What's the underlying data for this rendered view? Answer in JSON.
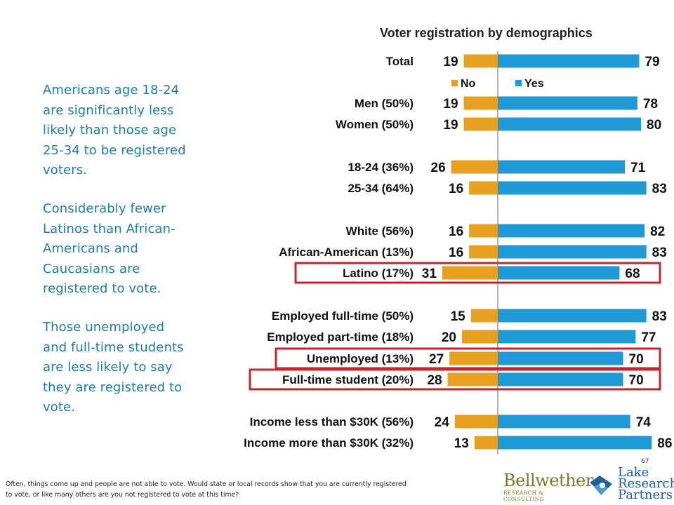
{
  "left_text": {
    "paragraph_1": "Americans age 18-24 are significantly less likely than those age 25-34 to be registered voters.",
    "paragraph_2": "Considerably fewer Latinos than African-Americans and Caucasians are registered to vote.",
    "paragraph_3": "Those unemployed and full-time students are less likely to say they are registered to vote."
  },
  "footnote": "Often, things come up and people are not able to vote. Would state or local records show that you are currently registered to vote, or  like many others are you not registered to vote at this time?",
  "page_number": "67",
  "logos": {
    "bellwether_main": "Bellwether",
    "bellwether_sub": "RESEARCH & CONSULTING",
    "lake_line1": "Lake",
    "lake_line2": "Research",
    "lake_line3": "Partners"
  },
  "colors": {
    "no": "#e8a020",
    "yes": "#1f9ad6",
    "highlight": "#c0272d",
    "axis": "#999999",
    "text_accent": "#1a7fa8"
  },
  "chart_data": {
    "type": "bar",
    "orientation": "horizontal-diverging",
    "title": "Voter registration by demographics",
    "legend": [
      {
        "name": "No",
        "color": "#e8a020"
      },
      {
        "name": "Yes",
        "color": "#1f9ad6"
      }
    ],
    "rows": [
      {
        "label": "Total",
        "no": 19,
        "yes": 79,
        "highlight": false
      },
      {
        "label": "Men (50%)",
        "no": 19,
        "yes": 78,
        "highlight": false
      },
      {
        "label": "Women (50%)",
        "no": 19,
        "yes": 80,
        "highlight": false
      },
      {
        "label": "18-24 (36%)",
        "no": 26,
        "yes": 71,
        "highlight": false
      },
      {
        "label": "25-34 (64%)",
        "no": 16,
        "yes": 83,
        "highlight": false
      },
      {
        "label": "White (56%)",
        "no": 16,
        "yes": 82,
        "highlight": false
      },
      {
        "label": "African-American (13%)",
        "no": 16,
        "yes": 83,
        "highlight": false
      },
      {
        "label": "Latino (17%)",
        "no": 31,
        "yes": 68,
        "highlight": true
      },
      {
        "label": "Employed full-time (50%)",
        "no": 15,
        "yes": 83,
        "highlight": false
      },
      {
        "label": "Employed part-time (18%)",
        "no": 20,
        "yes": 77,
        "highlight": false
      },
      {
        "label": "Unemployed (13%)",
        "no": 27,
        "yes": 70,
        "highlight": true
      },
      {
        "label": "Full-time student (20%)",
        "no": 28,
        "yes": 70,
        "highlight": true
      },
      {
        "label": "Income less than $30K (56%)",
        "no": 24,
        "yes": 74,
        "highlight": false
      },
      {
        "label": "Income more than $30K (32%)",
        "no": 13,
        "yes": 86,
        "highlight": false
      }
    ]
  }
}
